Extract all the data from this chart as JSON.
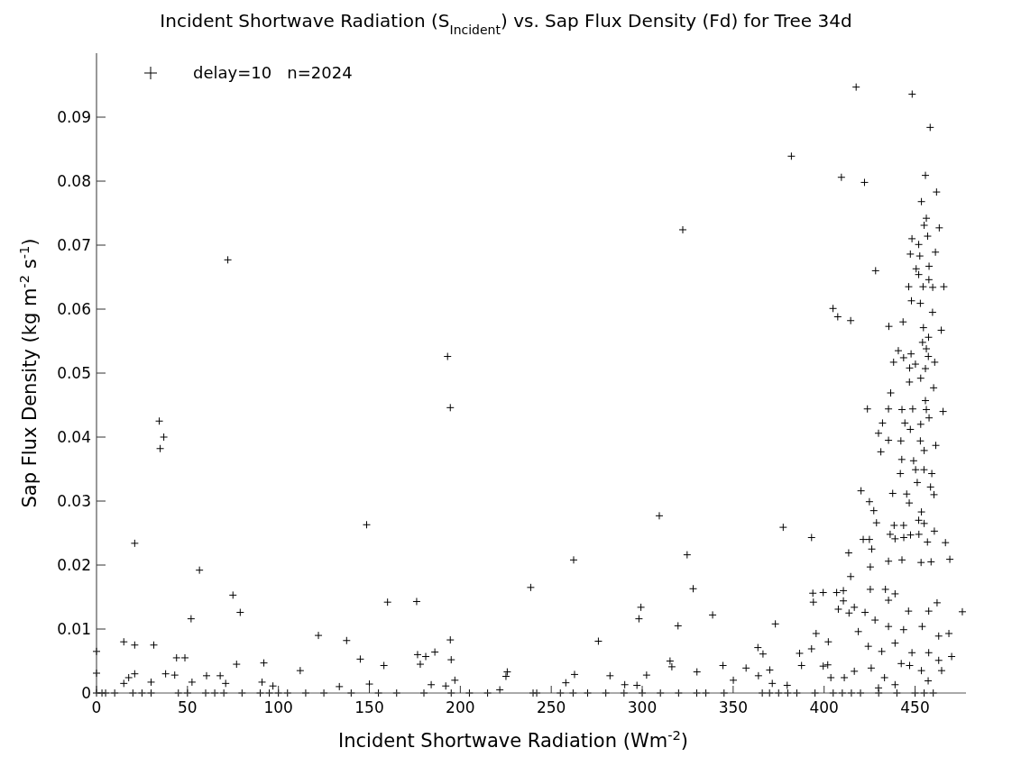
{
  "chart_data": {
    "type": "scatter",
    "title": "Incident Shortwave Radiation (S$_{Incident}$) vs. Sap Flux Density (Fd) for Tree 34d",
    "xlabel": "Incident Shortwave Radiation (Wm$^{-2}$)",
    "ylabel": "Sap Flux Density (kg m$^{-2}$ s$^{-1}$)",
    "xlim": [
      0,
      478
    ],
    "ylim": [
      0,
      0.1
    ],
    "xticks": [
      0,
      50,
      100,
      150,
      200,
      250,
      300,
      350,
      400,
      450
    ],
    "yticks": [
      0,
      0.01,
      0.02,
      0.03,
      0.04,
      0.05,
      0.06,
      0.07,
      0.08,
      0.09
    ],
    "grid": false,
    "legend": "top left",
    "marker": "cross",
    "series": [
      {
        "name": "delay=10   n=2024",
        "color": "#000000",
        "x": [
          34.5,
          37,
          35,
          21,
          56.6,
          52,
          75,
          79,
          148.5,
          160,
          176,
          194.5,
          194.5,
          195,
          122,
          137.5,
          145,
          158,
          176.5,
          181,
          186,
          178,
          15,
          21,
          31.5,
          44,
          48.6,
          38,
          43,
          21,
          17.7,
          15,
          30,
          60.5,
          68,
          71,
          77,
          92,
          112,
          91,
          184,
          192,
          197,
          150,
          133.5,
          52.5,
          97,
          0,
          0,
          0,
          3,
          5,
          10,
          20,
          25,
          30,
          45,
          50,
          60,
          65,
          70,
          80,
          90,
          95,
          100,
          105,
          115,
          125,
          140,
          155,
          165,
          180,
          195,
          205,
          215,
          72.2,
          193,
          417.6,
          448.4,
          458.3,
          382,
          409.5,
          422.2,
          455.7,
          461.8,
          453.5,
          322.3,
          456.2,
          455,
          463.3,
          456.9,
          448.3,
          452,
          447.4,
          452.6,
          461.2,
          457.7,
          428.3,
          450.6,
          452,
          457.6,
          446.5,
          454.4,
          459.7,
          465.8,
          448,
          452.9,
          459.6,
          404.9,
          407.5,
          414.6,
          435.6,
          443.4,
          454.6,
          464.4,
          457.4,
          454.1,
          456.2,
          440.8,
          447.8,
          443.7,
          457.3,
          438.2,
          450.2,
          460.8,
          447,
          455.7,
          453.1,
          446.9,
          460.2,
          436.6,
          455.7,
          423.8,
          435.4,
          442.8,
          448.7,
          456.2,
          465.4,
          457.7,
          432.1,
          444.4,
          453.1,
          447.4,
          309.4,
          262.3,
          238.7,
          324.7,
          328,
          299.3,
          298.2,
          338.7,
          319.7,
          275.9,
          377.5,
          393.1,
          373.2,
          476,
          420.3,
          424.9,
          427.3,
          428.8,
          424.9,
          413.5,
          414.6,
          393.8,
          399.5,
          406.9,
          410.6,
          394.1,
          410.6,
          407.8,
          416.6,
          413.7,
          395.6,
          402.3,
          393.1,
          386.5,
          387.6,
          363.6,
          366.4,
          344.4,
          357.1,
          370.1,
          363.9,
          371.5,
          315.3,
          316.3,
          330.1,
          302.4,
          282.3,
          262.8,
          225.8,
          225.1,
          258,
          290.4,
          297.1,
          350.1,
          379.7,
          221.7,
          399.5,
          402,
          435.4,
          442.8,
          453.3,
          458.8,
          469.1,
          466.7,
          438.5,
          443.7,
          436.3,
          439,
          443.8,
          447.5,
          452.1,
          460.6,
          456.8,
          453.5,
          452,
          455,
          437.7,
          445.4,
          446.8,
          441.9,
          450.3,
          454.9,
          459.2,
          451.2,
          458.5,
          460.4,
          442.7,
          449.2,
          431.2,
          429.9,
          461.4,
          435.4,
          442.2,
          452.9,
          455,
          421.5,
          426.2,
          425.4,
          425.4,
          433.7,
          435.4,
          439,
          446.4,
          457.5,
          462.1,
          422.5,
          428,
          435.4,
          443.7,
          453.9,
          463,
          468.6,
          470.1,
          418.8,
          424.3,
          431.7,
          439,
          448.3,
          457.5,
          463,
          416.6,
          425.9,
          433.2,
          442.4,
          447,
          453.5,
          457.2,
          464.6,
          411.1,
          403.7,
          439,
          429.9,
          366,
          370,
          375,
          380,
          385,
          395,
          405,
          410,
          415,
          420,
          430,
          440,
          450,
          455,
          460,
          240,
          242,
          255,
          262,
          270,
          280,
          290,
          300,
          310,
          320,
          330,
          335,
          345
        ],
        "values": [
          0.0425,
          0.04,
          0.0382,
          0.0234,
          0.0192,
          0.0116,
          0.0153,
          0.0126,
          0.0263,
          0.0142,
          0.0143,
          0.0446,
          0.0083,
          0.0052,
          0.009,
          0.0082,
          0.0053,
          0.0043,
          0.006,
          0.0057,
          0.0064,
          0.0045,
          0.008,
          0.0075,
          0.0075,
          0.0055,
          0.0055,
          0.003,
          0.0028,
          0.003,
          0.0024,
          0.0015,
          0.0017,
          0.0027,
          0.0027,
          0.0015,
          0.0045,
          0.0047,
          0.0035,
          0.0017,
          0.0013,
          0.0011,
          0.002,
          0.0014,
          0.001,
          0.0017,
          0.0011,
          0.0031,
          0.0065,
          0,
          0,
          0,
          0,
          0,
          0,
          0,
          0,
          0,
          0,
          0,
          0,
          0,
          0,
          0,
          0,
          0,
          0,
          0,
          0,
          0,
          0,
          0,
          0,
          0,
          0,
          0.0677,
          0.0526,
          0.0947,
          0.0936,
          0.0884,
          0.0839,
          0.0806,
          0.0798,
          0.0809,
          0.0783,
          0.0768,
          0.0724,
          0.0742,
          0.0731,
          0.0727,
          0.0714,
          0.071,
          0.0701,
          0.0686,
          0.0683,
          0.0689,
          0.0667,
          0.066,
          0.0663,
          0.0654,
          0.0646,
          0.0635,
          0.0635,
          0.0634,
          0.0635,
          0.0613,
          0.0609,
          0.0595,
          0.0601,
          0.0588,
          0.0582,
          0.0573,
          0.058,
          0.0571,
          0.0567,
          0.0556,
          0.0548,
          0.0538,
          0.0535,
          0.053,
          0.0524,
          0.0526,
          0.0517,
          0.0514,
          0.0517,
          0.0508,
          0.0507,
          0.0492,
          0.0486,
          0.0477,
          0.0469,
          0.0457,
          0.0444,
          0.0444,
          0.0443,
          0.0444,
          0.0443,
          0.044,
          0.043,
          0.0422,
          0.0422,
          0.042,
          0.0412,
          0.0277,
          0.0208,
          0.0165,
          0.0216,
          0.0163,
          0.0134,
          0.0116,
          0.0122,
          0.0105,
          0.0081,
          0.0259,
          0.0243,
          0.0108,
          0.0127,
          0.0316,
          0.0299,
          0.0285,
          0.0266,
          0.024,
          0.0219,
          0.0182,
          0.0156,
          0.0157,
          0.0157,
          0.016,
          0.0142,
          0.0144,
          0.0131,
          0.0134,
          0.0125,
          0.0093,
          0.008,
          0.0069,
          0.0062,
          0.0043,
          0.0071,
          0.0061,
          0.0043,
          0.0039,
          0.0036,
          0.0027,
          0.0015,
          0.005,
          0.0041,
          0.0033,
          0.0028,
          0.0027,
          0.0029,
          0.0033,
          0.0026,
          0.0016,
          0.0013,
          0.0012,
          0.002,
          0.0012,
          0.0005,
          0.0042,
          0.0044,
          0.0206,
          0.0208,
          0.0204,
          0.0205,
          0.0209,
          0.0235,
          0.0262,
          0.0262,
          0.0248,
          0.0241,
          0.0243,
          0.0247,
          0.0248,
          0.0253,
          0.0236,
          0.0283,
          0.027,
          0.0265,
          0.0312,
          0.0311,
          0.0297,
          0.0343,
          0.0349,
          0.0349,
          0.0343,
          0.0329,
          0.0322,
          0.031,
          0.0365,
          0.0363,
          0.0377,
          0.0406,
          0.0387,
          0.0395,
          0.0394,
          0.0394,
          0.0379,
          0.024,
          0.0225,
          0.0197,
          0.0162,
          0.0162,
          0.0145,
          0.0155,
          0.0128,
          0.0128,
          0.0141,
          0.0126,
          0.0114,
          0.0104,
          0.0099,
          0.0104,
          0.0089,
          0.0093,
          0.0057,
          0.0096,
          0.0073,
          0.0065,
          0.0078,
          0.0063,
          0.0063,
          0.0051,
          0.0034,
          0.0039,
          0.0024,
          0.0046,
          0.0043,
          0.0035,
          0.0019,
          0.0035,
          0.0024,
          0.0024,
          0.0013,
          0.0008,
          0,
          0,
          0,
          0,
          0,
          0,
          0,
          0,
          0,
          0,
          0,
          0,
          0,
          0,
          0,
          0,
          0,
          0,
          0,
          0,
          0,
          0,
          0,
          0,
          0,
          0,
          0,
          0
        ]
      }
    ]
  }
}
